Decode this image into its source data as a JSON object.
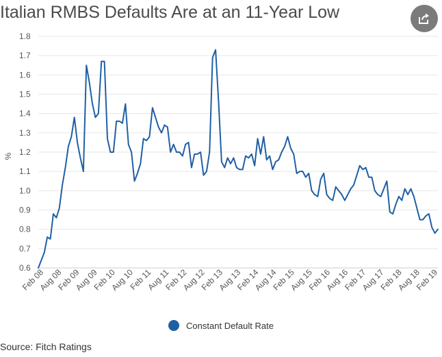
{
  "chart_data": {
    "type": "line",
    "title": "Italian RMBS Defaults Are at an 11-Year Low",
    "xlabel": "",
    "ylabel": "%",
    "ylim": [
      0.6,
      1.8
    ],
    "y_ticks": [
      0.6,
      0.7,
      0.8,
      0.9,
      1.0,
      1.1,
      1.2,
      1.3,
      1.4,
      1.5,
      1.6,
      1.7,
      1.8
    ],
    "y_tick_labels": [
      "0.6",
      "0.7",
      "0.8",
      "0.9",
      "1.0",
      "1.1",
      "1.2",
      "1.3",
      "1.4",
      "1.5",
      "1.6",
      "1.7",
      "1.8"
    ],
    "x_tick_labels": [
      "Feb 08",
      "Aug 08",
      "Feb 09",
      "Aug 09",
      "Feb 10",
      "Aug 10",
      "Feb 11",
      "Aug 11",
      "Feb 12",
      "Aug 12",
      "Feb 13",
      "Aug 13",
      "Feb 14",
      "Aug 14",
      "Feb 15",
      "Aug 15",
      "Feb 16",
      "Aug 16",
      "Feb 17",
      "Aug 17",
      "Feb 18",
      "Aug 18",
      "Feb 19"
    ],
    "grid": true,
    "legend_position": "bottom-center",
    "series": [
      {
        "name": "Constant Default Rate",
        "color": "#1f5fa4",
        "values": [
          0.6,
          0.64,
          0.68,
          0.76,
          0.75,
          0.88,
          0.86,
          0.91,
          1.03,
          1.12,
          1.23,
          1.28,
          1.38,
          1.25,
          1.17,
          1.1,
          1.65,
          1.56,
          1.45,
          1.38,
          1.4,
          1.67,
          1.67,
          1.27,
          1.2,
          1.2,
          1.36,
          1.36,
          1.35,
          1.45,
          1.24,
          1.2,
          1.05,
          1.09,
          1.14,
          1.27,
          1.26,
          1.28,
          1.43,
          1.38,
          1.33,
          1.3,
          1.34,
          1.33,
          1.2,
          1.24,
          1.2,
          1.2,
          1.18,
          1.24,
          1.25,
          1.12,
          1.19,
          1.19,
          1.2,
          1.08,
          1.1,
          1.2,
          1.69,
          1.73,
          1.46,
          1.15,
          1.12,
          1.17,
          1.14,
          1.17,
          1.12,
          1.11,
          1.11,
          1.18,
          1.17,
          1.19,
          1.13,
          1.27,
          1.19,
          1.28,
          1.16,
          1.18,
          1.11,
          1.15,
          1.16,
          1.2,
          1.23,
          1.28,
          1.22,
          1.19,
          1.09,
          1.1,
          1.1,
          1.07,
          1.09,
          1.0,
          0.98,
          0.97,
          1.06,
          1.09,
          0.98,
          0.96,
          0.95,
          1.02,
          1.0,
          0.98,
          0.95,
          0.98,
          1.01,
          1.03,
          1.08,
          1.13,
          1.11,
          1.12,
          1.07,
          1.07,
          1.0,
          0.98,
          0.97,
          1.01,
          1.05,
          0.89,
          0.88,
          0.93,
          0.97,
          0.95,
          1.01,
          0.98,
          1.01,
          0.97,
          0.91,
          0.85,
          0.85,
          0.87,
          0.88,
          0.81,
          0.78,
          0.8
        ]
      }
    ]
  },
  "legend": {
    "label": "Constant Default Rate"
  },
  "source": "Source: Fitch Ratings",
  "share_icon": "share-icon"
}
